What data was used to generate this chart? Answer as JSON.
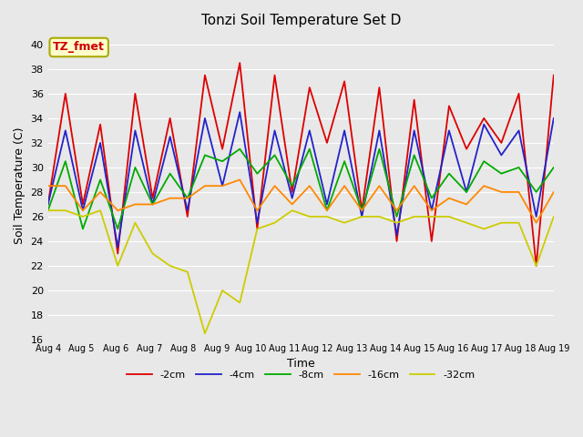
{
  "title": "Tonzi Soil Temperature Set D",
  "xlabel": "Time",
  "ylabel": "Soil Temperature (C)",
  "ylim": [
    16,
    41
  ],
  "yticks": [
    16,
    18,
    20,
    22,
    24,
    26,
    28,
    30,
    32,
    34,
    36,
    38,
    40
  ],
  "annotation_text": "TZ_fmet",
  "annotation_color": "#cc0000",
  "annotation_bg": "#ffffcc",
  "annotation_border": "#aaaa00",
  "plot_bg": "#e8e8e8",
  "series_names": [
    "-2cm",
    "-4cm",
    "-8cm",
    "-16cm",
    "-32cm"
  ],
  "series_colors": [
    "#dd0000",
    "#2222cc",
    "#00aa00",
    "#ff8800",
    "#cccc00"
  ],
  "series_lw": [
    1.3,
    1.3,
    1.3,
    1.3,
    1.3
  ],
  "x_labels": [
    "Aug 4",
    "Aug 5",
    "Aug 6",
    "Aug 7",
    "Aug 8",
    "Aug 9",
    "Aug 10",
    "Aug 11",
    "Aug 12",
    "Aug 13",
    "Aug 14",
    "Aug 15",
    "Aug 16",
    "Aug 17",
    "Aug 18",
    "Aug 19"
  ],
  "data": {
    "-2cm": [
      27.0,
      36.0,
      27.0,
      33.5,
      23.0,
      36.0,
      27.5,
      34.0,
      26.0,
      37.5,
      31.5,
      38.5,
      25.0,
      37.5,
      28.0,
      36.5,
      32.0,
      37.0,
      26.5,
      36.5,
      24.0,
      35.5,
      24.0,
      35.0,
      31.5,
      34.0,
      32.0,
      36.0,
      22.0,
      37.5
    ],
    "-4cm": [
      27.0,
      33.0,
      26.5,
      32.0,
      23.5,
      33.0,
      27.0,
      32.5,
      26.5,
      34.0,
      28.5,
      34.5,
      25.5,
      33.0,
      27.5,
      33.0,
      27.0,
      33.0,
      26.0,
      33.0,
      24.5,
      33.0,
      26.5,
      33.0,
      28.0,
      33.5,
      31.0,
      33.0,
      26.0,
      34.0
    ],
    "-8cm": [
      26.5,
      30.5,
      25.0,
      29.0,
      25.0,
      30.0,
      27.0,
      29.5,
      27.5,
      31.0,
      30.5,
      31.5,
      29.5,
      31.0,
      28.5,
      31.5,
      26.5,
      30.5,
      26.5,
      31.5,
      26.0,
      31.0,
      27.5,
      29.5,
      28.0,
      30.5,
      29.5,
      30.0,
      28.0,
      30.0
    ],
    "-16cm": [
      28.5,
      28.5,
      26.5,
      28.0,
      26.5,
      27.0,
      27.0,
      27.5,
      27.5,
      28.5,
      28.5,
      29.0,
      26.5,
      28.5,
      27.0,
      28.5,
      26.5,
      28.5,
      26.5,
      28.5,
      26.5,
      28.5,
      26.5,
      27.5,
      27.0,
      28.5,
      28.0,
      28.0,
      25.5,
      28.0
    ],
    "-32cm": [
      26.5,
      26.5,
      26.0,
      26.5,
      22.0,
      25.5,
      23.0,
      22.0,
      21.5,
      16.5,
      20.0,
      19.0,
      25.0,
      25.5,
      26.5,
      26.0,
      26.0,
      25.5,
      26.0,
      26.0,
      25.5,
      26.0,
      26.0,
      26.0,
      25.5,
      25.0,
      25.5,
      25.5,
      22.0,
      26.0
    ]
  },
  "figsize": [
    6.4,
    4.8
  ],
  "dpi": 100
}
